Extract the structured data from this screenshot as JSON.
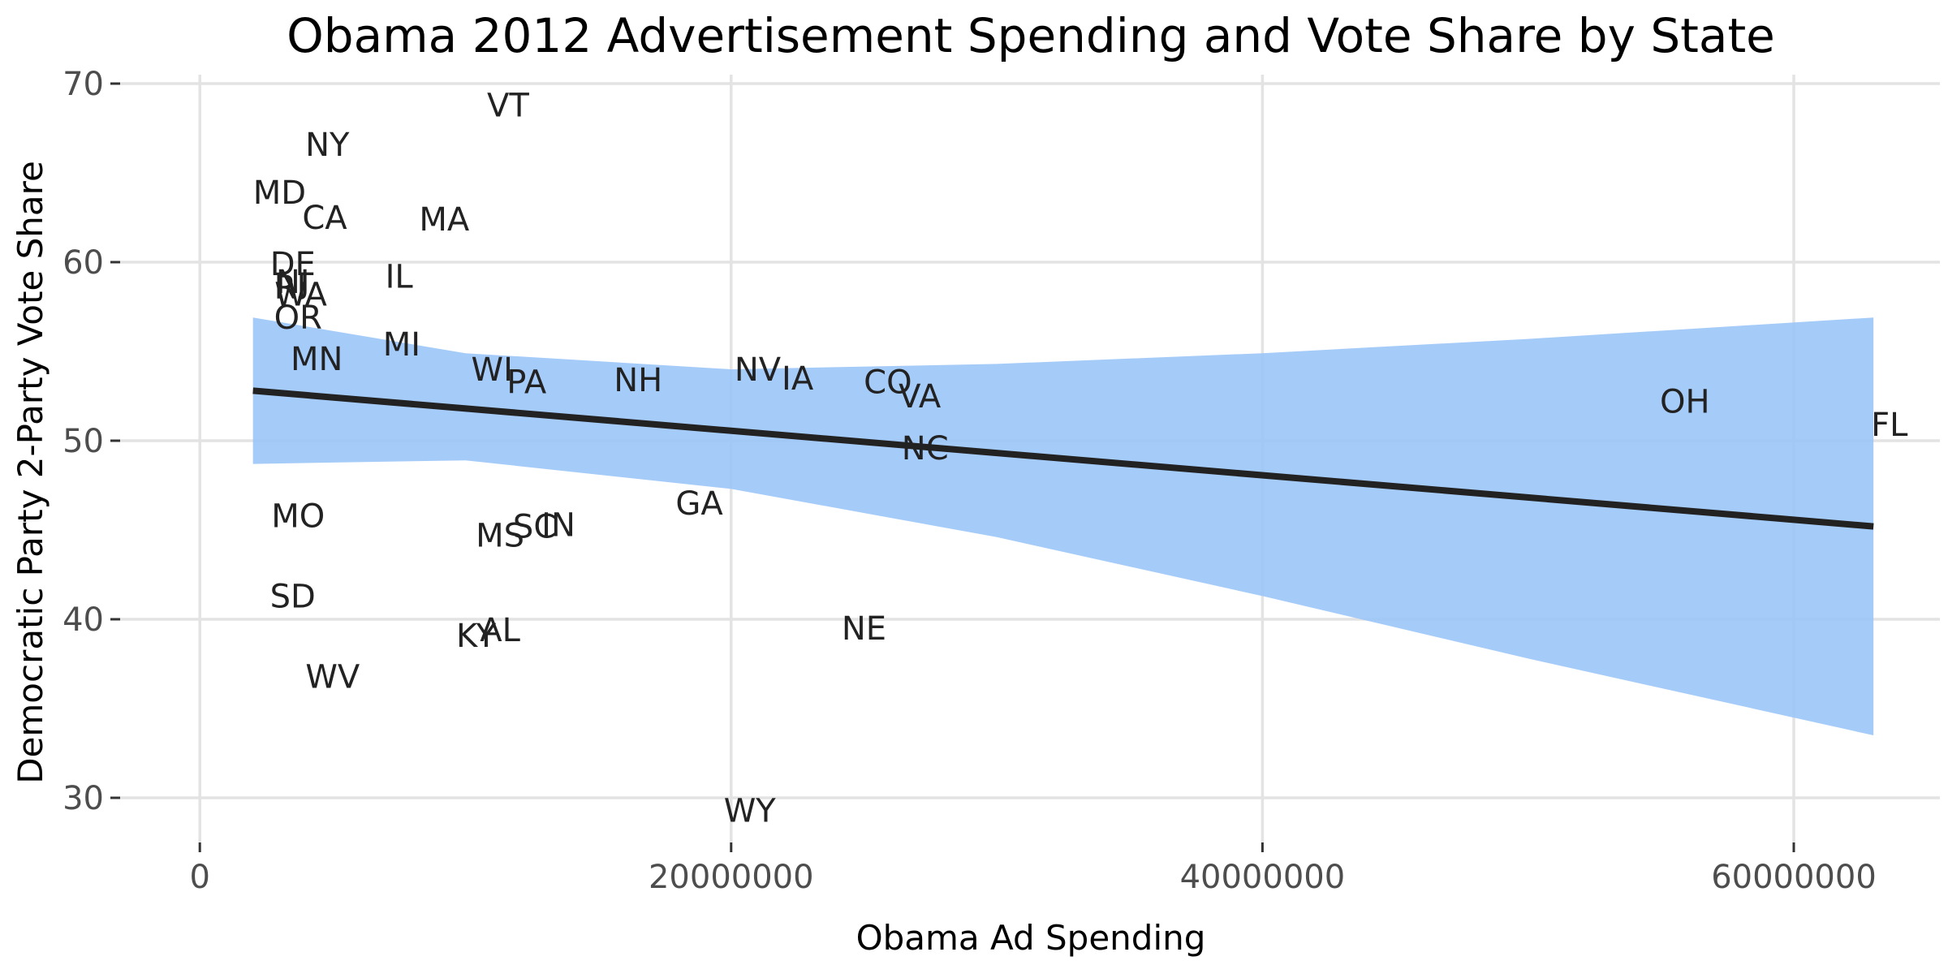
{
  "chart_data": {
    "type": "scatter",
    "title": "Obama 2012 Advertisement Spending and Vote Share by State",
    "xlabel": "Obama Ad Spending",
    "ylabel": "Democratic Party 2-Party Vote Share",
    "xlim": [
      -3000000,
      65500000
    ],
    "ylim": [
      27.5,
      70.5
    ],
    "x_ticks": [
      0,
      20000000,
      40000000,
      60000000
    ],
    "x_tick_labels": [
      "0",
      "20000000",
      "40000000",
      "60000000"
    ],
    "y_ticks": [
      30,
      40,
      50,
      60,
      70
    ],
    "y_tick_labels": [
      "30",
      "40",
      "50",
      "60",
      "70"
    ],
    "grid": true,
    "legend": "none",
    "points": [
      {
        "label": "VT",
        "x": 11600000,
        "y": 68.8
      },
      {
        "label": "NY",
        "x": 4800000,
        "y": 66.6
      },
      {
        "label": "MD",
        "x": 3000000,
        "y": 63.9
      },
      {
        "label": "CA",
        "x": 4700000,
        "y": 62.5
      },
      {
        "label": "MA",
        "x": 9200000,
        "y": 62.4
      },
      {
        "label": "DE",
        "x": 3500000,
        "y": 59.9
      },
      {
        "label": "NJ",
        "x": 3500000,
        "y": 58.9
      },
      {
        "label": "IL",
        "x": 7500000,
        "y": 59.2
      },
      {
        "label": "WA",
        "x": 3800000,
        "y": 58.2
      },
      {
        "label": "RI",
        "x": 3400000,
        "y": 58.6
      },
      {
        "label": "OR",
        "x": 3700000,
        "y": 56.9
      },
      {
        "label": "MI",
        "x": 7600000,
        "y": 55.4
      },
      {
        "label": "MN",
        "x": 4400000,
        "y": 54.6
      },
      {
        "label": "WI",
        "x": 11000000,
        "y": 54.0
      },
      {
        "label": "PA",
        "x": 12300000,
        "y": 53.3
      },
      {
        "label": "NH",
        "x": 16500000,
        "y": 53.4
      },
      {
        "label": "NV",
        "x": 21000000,
        "y": 54.0
      },
      {
        "label": "IA",
        "x": 22500000,
        "y": 53.5
      },
      {
        "label": "CO",
        "x": 25900000,
        "y": 53.3
      },
      {
        "label": "VA",
        "x": 27100000,
        "y": 52.5
      },
      {
        "label": "OH",
        "x": 55900000,
        "y": 52.2
      },
      {
        "label": "FL",
        "x": 63600000,
        "y": 50.9
      },
      {
        "label": "NC",
        "x": 27300000,
        "y": 49.6
      },
      {
        "label": "GA",
        "x": 18800000,
        "y": 46.5
      },
      {
        "label": "MO",
        "x": 3700000,
        "y": 45.8
      },
      {
        "label": "SC",
        "x": 12600000,
        "y": 45.2
      },
      {
        "label": "IN",
        "x": 13500000,
        "y": 45.3
      },
      {
        "label": "MS",
        "x": 11300000,
        "y": 44.7
      },
      {
        "label": "SD",
        "x": 3500000,
        "y": 41.3
      },
      {
        "label": "NE",
        "x": 25000000,
        "y": 39.5
      },
      {
        "label": "AL",
        "x": 11300000,
        "y": 39.4
      },
      {
        "label": "KY",
        "x": 10400000,
        "y": 39.1
      },
      {
        "label": "WV",
        "x": 5000000,
        "y": 36.8
      },
      {
        "label": "WY",
        "x": 20700000,
        "y": 29.3
      }
    ],
    "trend_line": {
      "x": [
        2000000,
        63000000
      ],
      "y": [
        52.8,
        45.2
      ],
      "color": "#222222"
    },
    "confidence_band": {
      "x": [
        2000000,
        10000000,
        20000000,
        30000000,
        40000000,
        50000000,
        63000000
      ],
      "lower": [
        48.7,
        48.9,
        47.3,
        44.6,
        41.3,
        37.8,
        33.5
      ],
      "upper": [
        56.9,
        54.9,
        54.0,
        54.3,
        54.9,
        55.7,
        56.9
      ],
      "color": "#99c4f8"
    }
  }
}
